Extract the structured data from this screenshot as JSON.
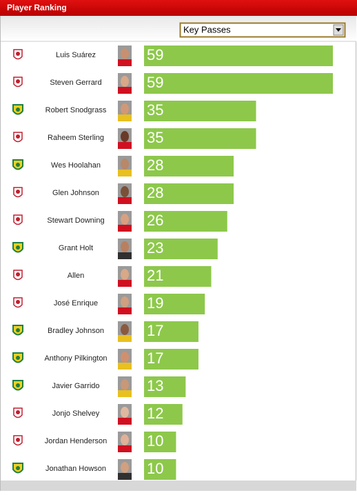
{
  "chart_data": {
    "type": "bar",
    "title": "Player Ranking",
    "dropdown": "Key Passes",
    "categories": [
      "Luis Suárez",
      "Steven Gerrard",
      "Robert Snodgrass",
      "Raheem Sterling",
      "Wes Hoolahan",
      "Glen Johnson",
      "Stewart Downing",
      "Grant Holt",
      "Allen",
      "José Enrique",
      "Bradley Johnson",
      "Anthony Pilkington",
      "Javier Garrido",
      "Jonjo Shelvey",
      "Jordan Henderson",
      "Jonathan Howson"
    ],
    "values": [
      59,
      59,
      35,
      35,
      28,
      28,
      26,
      23,
      21,
      19,
      17,
      17,
      13,
      12,
      10,
      10
    ],
    "color": "#8dc84b"
  }
}
